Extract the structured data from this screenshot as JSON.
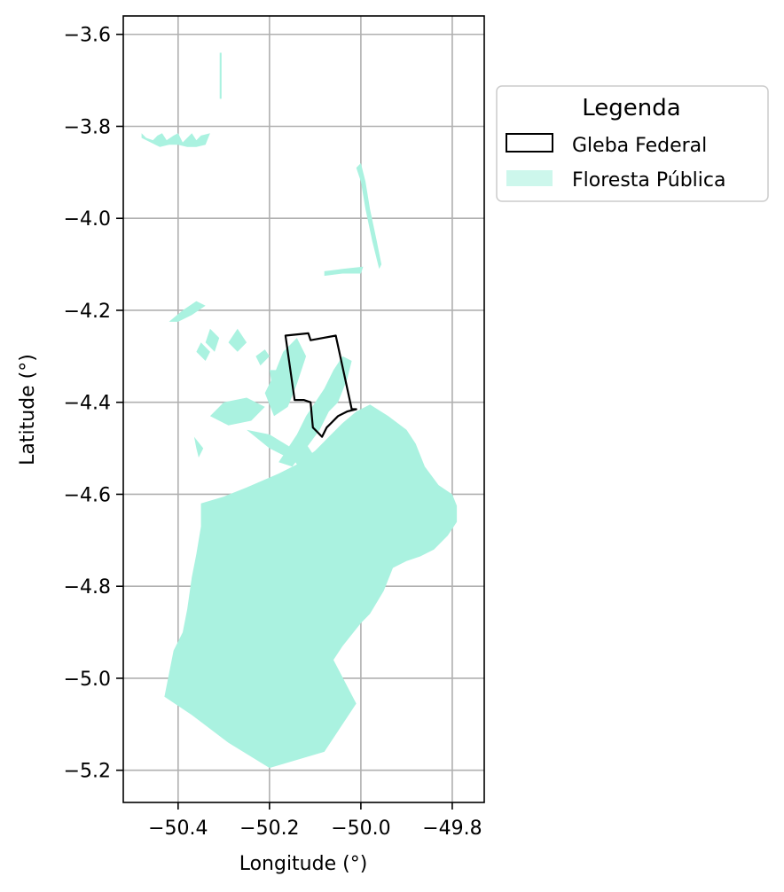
{
  "chart_data": {
    "type": "map",
    "xlabel": "Longitude (°)",
    "ylabel": "Latitude (°)",
    "xlim": [
      -50.52,
      -49.73
    ],
    "ylim": [
      -5.27,
      -3.56
    ],
    "xticks": [
      -50.4,
      -50.2,
      -50.0,
      -49.8
    ],
    "xtick_labels": [
      "−50.4",
      "−50.2",
      "−50.0",
      "−49.8"
    ],
    "yticks": [
      -3.6,
      -3.8,
      -4.0,
      -4.2,
      -4.4,
      -4.6,
      -4.8,
      -5.0,
      -5.2
    ],
    "ytick_labels": [
      "−3.6",
      "−3.8",
      "−4.0",
      "−4.2",
      "−4.4",
      "−4.6",
      "−4.8",
      "−5.0",
      "−5.2"
    ],
    "grid": true,
    "legend": {
      "title": "Legenda",
      "placement": "outside-right-top",
      "entries": [
        {
          "label": "Gleba Federal",
          "style": "outline",
          "color": "#000000"
        },
        {
          "label": "Floresta Pública",
          "style": "fill",
          "color": "#aaf2e0"
        }
      ]
    },
    "layers": {
      "floresta_publica": {
        "name": "Floresta Pública",
        "color": "#aaf2e0",
        "polygons": [
          [
            [
              -50.18,
              -4.555
            ],
            [
              -50.14,
              -4.535
            ],
            [
              -50.1,
              -4.505
            ],
            [
              -50.07,
              -4.475
            ],
            [
              -50.04,
              -4.445
            ],
            [
              -50.01,
              -4.42
            ],
            [
              -49.98,
              -4.405
            ],
            [
              -49.94,
              -4.43
            ],
            [
              -49.9,
              -4.46
            ],
            [
              -49.88,
              -4.49
            ],
            [
              -49.86,
              -4.54
            ],
            [
              -49.83,
              -4.58
            ],
            [
              -49.8,
              -4.6
            ],
            [
              -49.79,
              -4.625
            ],
            [
              -49.79,
              -4.66
            ],
            [
              -49.81,
              -4.69
            ],
            [
              -49.84,
              -4.72
            ],
            [
              -49.87,
              -4.735
            ],
            [
              -49.9,
              -4.745
            ],
            [
              -49.93,
              -4.76
            ],
            [
              -49.95,
              -4.81
            ],
            [
              -49.98,
              -4.86
            ],
            [
              -50.0,
              -4.88
            ],
            [
              -50.04,
              -4.93
            ],
            [
              -50.06,
              -4.96
            ],
            [
              -50.01,
              -5.055
            ],
            [
              -50.08,
              -5.16
            ],
            [
              -50.2,
              -5.195
            ],
            [
              -50.29,
              -5.14
            ],
            [
              -50.37,
              -5.08
            ],
            [
              -50.43,
              -5.04
            ],
            [
              -50.41,
              -4.94
            ],
            [
              -50.39,
              -4.9
            ],
            [
              -50.38,
              -4.85
            ],
            [
              -50.37,
              -4.78
            ],
            [
              -50.36,
              -4.73
            ],
            [
              -50.35,
              -4.67
            ],
            [
              -50.35,
              -4.62
            ],
            [
              -50.3,
              -4.605
            ],
            [
              -50.25,
              -4.585
            ],
            [
              -50.18,
              -4.555
            ]
          ],
          [
            [
              -50.07,
              -4.42
            ],
            [
              -50.05,
              -4.4
            ],
            [
              -50.03,
              -4.35
            ],
            [
              -50.02,
              -4.31
            ],
            [
              -50.04,
              -4.3
            ],
            [
              -50.06,
              -4.33
            ],
            [
              -50.08,
              -4.37
            ],
            [
              -50.1,
              -4.4
            ],
            [
              -50.12,
              -4.43
            ],
            [
              -50.14,
              -4.47
            ],
            [
              -50.16,
              -4.5
            ],
            [
              -50.18,
              -4.53
            ],
            [
              -50.15,
              -4.54
            ],
            [
              -50.12,
              -4.5
            ],
            [
              -50.09,
              -4.46
            ],
            [
              -50.07,
              -4.42
            ]
          ],
          [
            [
              -50.21,
              -4.38
            ],
            [
              -50.19,
              -4.34
            ],
            [
              -50.17,
              -4.29
            ],
            [
              -50.14,
              -4.26
            ],
            [
              -50.12,
              -4.3
            ],
            [
              -50.14,
              -4.36
            ],
            [
              -50.16,
              -4.41
            ],
            [
              -50.19,
              -4.43
            ],
            [
              -50.21,
              -4.38
            ]
          ],
          [
            [
              -50.3,
              -4.4
            ],
            [
              -50.25,
              -4.39
            ],
            [
              -50.21,
              -4.41
            ],
            [
              -50.24,
              -4.44
            ],
            [
              -50.29,
              -4.45
            ],
            [
              -50.33,
              -4.43
            ],
            [
              -50.3,
              -4.4
            ]
          ],
          [
            [
              -50.2,
              -4.33
            ],
            [
              -50.17,
              -4.33
            ],
            [
              -50.16,
              -4.37
            ],
            [
              -50.19,
              -4.39
            ],
            [
              -50.2,
              -4.33
            ]
          ],
          [
            [
              -50.25,
              -4.46
            ],
            [
              -50.2,
              -4.5
            ],
            [
              -50.16,
              -4.52
            ],
            [
              -50.15,
              -4.5
            ],
            [
              -50.2,
              -4.47
            ],
            [
              -50.25,
              -4.46
            ]
          ],
          [
            [
              -50.12,
              -4.49
            ],
            [
              -50.1,
              -4.52
            ],
            [
              -50.13,
              -4.55
            ],
            [
              -50.15,
              -4.52
            ],
            [
              -50.12,
              -4.49
            ]
          ],
          [
            [
              -50.27,
              -4.24
            ],
            [
              -50.25,
              -4.27
            ],
            [
              -50.27,
              -4.29
            ],
            [
              -50.29,
              -4.27
            ],
            [
              -50.27,
              -4.24
            ]
          ],
          [
            [
              -50.21,
              -4.285
            ],
            [
              -50.2,
              -4.3
            ],
            [
              -50.22,
              -4.32
            ],
            [
              -50.23,
              -4.3
            ],
            [
              -50.21,
              -4.285
            ]
          ],
          [
            [
              -50.33,
              -4.24
            ],
            [
              -50.31,
              -4.26
            ],
            [
              -50.32,
              -4.29
            ],
            [
              -50.34,
              -4.27
            ],
            [
              -50.33,
              -4.24
            ]
          ],
          [
            [
              -50.35,
              -4.27
            ],
            [
              -50.33,
              -4.29
            ],
            [
              -50.34,
              -4.31
            ],
            [
              -50.36,
              -4.29
            ],
            [
              -50.35,
              -4.27
            ]
          ],
          [
            [
              -50.42,
              -4.225
            ],
            [
              -50.39,
              -4.2
            ],
            [
              -50.36,
              -4.18
            ],
            [
              -50.34,
              -4.19
            ],
            [
              -50.37,
              -4.21
            ],
            [
              -50.4,
              -4.225
            ],
            [
              -50.42,
              -4.225
            ]
          ],
          [
            [
              -50.365,
              -4.475
            ],
            [
              -50.36,
              -4.5
            ],
            [
              -50.355,
              -4.52
            ],
            [
              -50.345,
              -4.5
            ],
            [
              -50.365,
              -4.475
            ]
          ],
          [
            [
              -50.0,
              -3.88
            ],
            [
              -49.99,
              -3.92
            ],
            [
              -49.98,
              -3.98
            ],
            [
              -49.965,
              -4.05
            ],
            [
              -49.955,
              -4.1
            ],
            [
              -49.96,
              -4.11
            ],
            [
              -49.975,
              -4.05
            ],
            [
              -49.99,
              -3.98
            ],
            [
              -50.0,
              -3.92
            ],
            [
              -50.01,
              -3.89
            ],
            [
              -50.0,
              -3.88
            ]
          ],
          [
            [
              -50.08,
              -4.115
            ],
            [
              -50.04,
              -4.11
            ],
            [
              -49.995,
              -4.105
            ],
            [
              -50.0,
              -4.12
            ],
            [
              -50.04,
              -4.12
            ],
            [
              -50.08,
              -4.125
            ],
            [
              -50.08,
              -4.115
            ]
          ],
          [
            [
              -50.48,
              -3.815
            ],
            [
              -50.47,
              -3.825
            ],
            [
              -50.455,
              -3.83
            ],
            [
              -50.445,
              -3.82
            ],
            [
              -50.435,
              -3.815
            ],
            [
              -50.425,
              -3.83
            ],
            [
              -50.41,
              -3.82
            ],
            [
              -50.4,
              -3.815
            ],
            [
              -50.39,
              -3.835
            ],
            [
              -50.38,
              -3.825
            ],
            [
              -50.37,
              -3.815
            ],
            [
              -50.36,
              -3.83
            ],
            [
              -50.35,
              -3.82
            ],
            [
              -50.33,
              -3.815
            ],
            [
              -50.34,
              -3.84
            ],
            [
              -50.36,
              -3.845
            ],
            [
              -50.38,
              -3.845
            ],
            [
              -50.4,
              -3.84
            ],
            [
              -50.42,
              -3.84
            ],
            [
              -50.44,
              -3.845
            ],
            [
              -50.46,
              -3.835
            ],
            [
              -50.48,
              -3.825
            ],
            [
              -50.48,
              -3.815
            ]
          ],
          [
            [
              -50.309,
              -3.64
            ],
            [
              -50.305,
              -3.64
            ],
            [
              -50.305,
              -3.74
            ],
            [
              -50.309,
              -3.74
            ],
            [
              -50.309,
              -3.64
            ]
          ]
        ]
      },
      "gleba_federal": {
        "name": "Gleba Federal",
        "color": "#000000",
        "polygons": [
          [
            [
              -50.165,
              -4.255
            ],
            [
              -50.115,
              -4.25
            ],
            [
              -50.11,
              -4.265
            ],
            [
              -50.055,
              -4.255
            ],
            [
              -50.02,
              -4.415
            ],
            [
              -50.01,
              -4.415
            ],
            [
              -50.03,
              -4.42
            ],
            [
              -50.05,
              -4.43
            ],
            [
              -50.065,
              -4.445
            ],
            [
              -50.075,
              -4.455
            ],
            [
              -50.085,
              -4.475
            ],
            [
              -50.095,
              -4.465
            ],
            [
              -50.105,
              -4.455
            ],
            [
              -50.11,
              -4.4
            ],
            [
              -50.125,
              -4.395
            ],
            [
              -50.145,
              -4.395
            ],
            [
              -50.165,
              -4.255
            ]
          ]
        ]
      }
    }
  }
}
